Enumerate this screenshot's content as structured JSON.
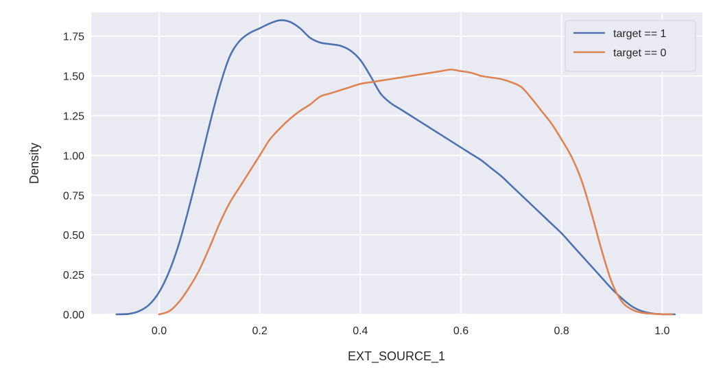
{
  "chart_data": {
    "type": "line",
    "title": "",
    "xlabel": "EXT_SOURCE_1",
    "ylabel": "Density",
    "xlim": [
      -0.135,
      1.08
    ],
    "ylim": [
      0,
      1.9
    ],
    "xticks": [
      0.0,
      0.2,
      0.4,
      0.6,
      0.8,
      1.0
    ],
    "xtick_labels": [
      "0.0",
      "0.2",
      "0.4",
      "0.6",
      "0.8",
      "1.0"
    ],
    "yticks": [
      0.0,
      0.25,
      0.5,
      0.75,
      1.0,
      1.25,
      1.5,
      1.75
    ],
    "ytick_labels": [
      "0.00",
      "0.25",
      "0.50",
      "0.75",
      "1.00",
      "1.25",
      "1.50",
      "1.75"
    ],
    "grid": true,
    "legend_position": "top-right",
    "colors": {
      "background": "#eaeaf2",
      "grid": "#ffffff"
    },
    "series": [
      {
        "name": "target == 1",
        "color": "#4c72b0",
        "x": [
          -0.085,
          -0.06,
          -0.04,
          -0.02,
          0.0,
          0.02,
          0.04,
          0.06,
          0.08,
          0.1,
          0.12,
          0.14,
          0.16,
          0.18,
          0.2,
          0.22,
          0.24,
          0.26,
          0.28,
          0.3,
          0.32,
          0.34,
          0.36,
          0.38,
          0.4,
          0.42,
          0.44,
          0.46,
          0.48,
          0.5,
          0.52,
          0.54,
          0.56,
          0.58,
          0.6,
          0.62,
          0.64,
          0.66,
          0.68,
          0.7,
          0.72,
          0.74,
          0.76,
          0.78,
          0.8,
          0.82,
          0.84,
          0.86,
          0.88,
          0.9,
          0.92,
          0.94,
          0.96,
          0.98,
          1.0,
          1.025
        ],
        "y": [
          0.0,
          0.003,
          0.02,
          0.06,
          0.14,
          0.27,
          0.45,
          0.68,
          0.93,
          1.19,
          1.43,
          1.62,
          1.72,
          1.77,
          1.8,
          1.83,
          1.85,
          1.84,
          1.8,
          1.74,
          1.71,
          1.7,
          1.69,
          1.66,
          1.6,
          1.5,
          1.39,
          1.33,
          1.29,
          1.25,
          1.21,
          1.17,
          1.13,
          1.09,
          1.05,
          1.01,
          0.97,
          0.92,
          0.87,
          0.81,
          0.75,
          0.69,
          0.63,
          0.57,
          0.51,
          0.44,
          0.37,
          0.3,
          0.23,
          0.16,
          0.1,
          0.05,
          0.02,
          0.006,
          0.001,
          0.0
        ]
      },
      {
        "name": "target == 0",
        "color": "#dd8452",
        "x": [
          0.0,
          0.02,
          0.04,
          0.06,
          0.08,
          0.1,
          0.12,
          0.14,
          0.16,
          0.18,
          0.2,
          0.22,
          0.24,
          0.26,
          0.28,
          0.3,
          0.32,
          0.34,
          0.36,
          0.38,
          0.4,
          0.42,
          0.44,
          0.46,
          0.48,
          0.5,
          0.52,
          0.54,
          0.56,
          0.58,
          0.6,
          0.62,
          0.64,
          0.66,
          0.68,
          0.7,
          0.72,
          0.74,
          0.76,
          0.78,
          0.8,
          0.82,
          0.84,
          0.86,
          0.88,
          0.9,
          0.92,
          0.94,
          0.96,
          0.98,
          1.0,
          1.02
        ],
        "y": [
          0.0,
          0.02,
          0.08,
          0.17,
          0.28,
          0.42,
          0.57,
          0.7,
          0.8,
          0.9,
          1.0,
          1.1,
          1.17,
          1.23,
          1.28,
          1.32,
          1.37,
          1.39,
          1.41,
          1.43,
          1.45,
          1.46,
          1.47,
          1.48,
          1.49,
          1.5,
          1.51,
          1.52,
          1.53,
          1.54,
          1.53,
          1.52,
          1.5,
          1.49,
          1.48,
          1.46,
          1.43,
          1.36,
          1.28,
          1.2,
          1.1,
          0.99,
          0.84,
          0.63,
          0.4,
          0.2,
          0.08,
          0.03,
          0.01,
          0.004,
          0.001,
          0.0
        ]
      }
    ]
  }
}
